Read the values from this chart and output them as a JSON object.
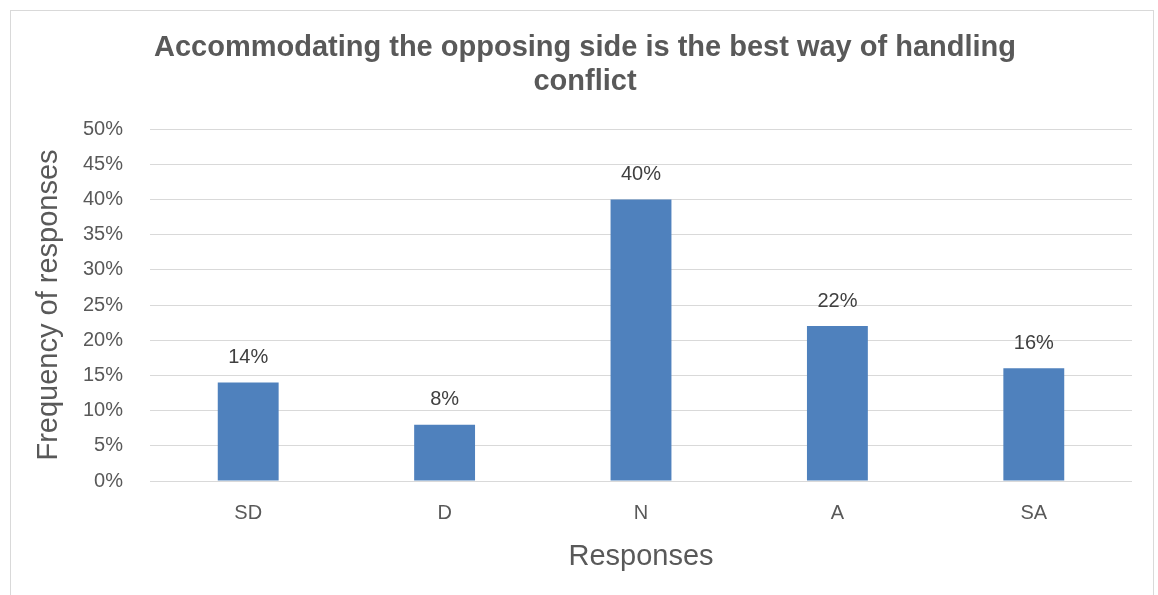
{
  "chart_data": {
    "type": "bar",
    "title": "Accommodating the opposing side is the best way of handling conflict",
    "xlabel": "Responses",
    "ylabel": "Frequency of responses",
    "categories": [
      "SD",
      "D",
      "N",
      "A",
      "SA"
    ],
    "values": [
      14,
      8,
      40,
      22,
      16
    ],
    "value_labels": [
      "14%",
      "8%",
      "40%",
      "22%",
      "16%"
    ],
    "color": "#4f81bd",
    "ylim": [
      0,
      50
    ],
    "yticks": [
      {
        "value": 0,
        "label": "0%"
      },
      {
        "value": 5,
        "label": "5%"
      },
      {
        "value": 10,
        "label": "10%"
      },
      {
        "value": 15,
        "label": "15%"
      },
      {
        "value": 20,
        "label": "20%"
      },
      {
        "value": 25,
        "label": "25%"
      },
      {
        "value": 30,
        "label": "30%"
      },
      {
        "value": 35,
        "label": "35%"
      },
      {
        "value": 40,
        "label": "40%"
      },
      {
        "value": 45,
        "label": "45%"
      },
      {
        "value": 50,
        "label": "50%"
      }
    ],
    "grid": "y",
    "legend": false
  }
}
